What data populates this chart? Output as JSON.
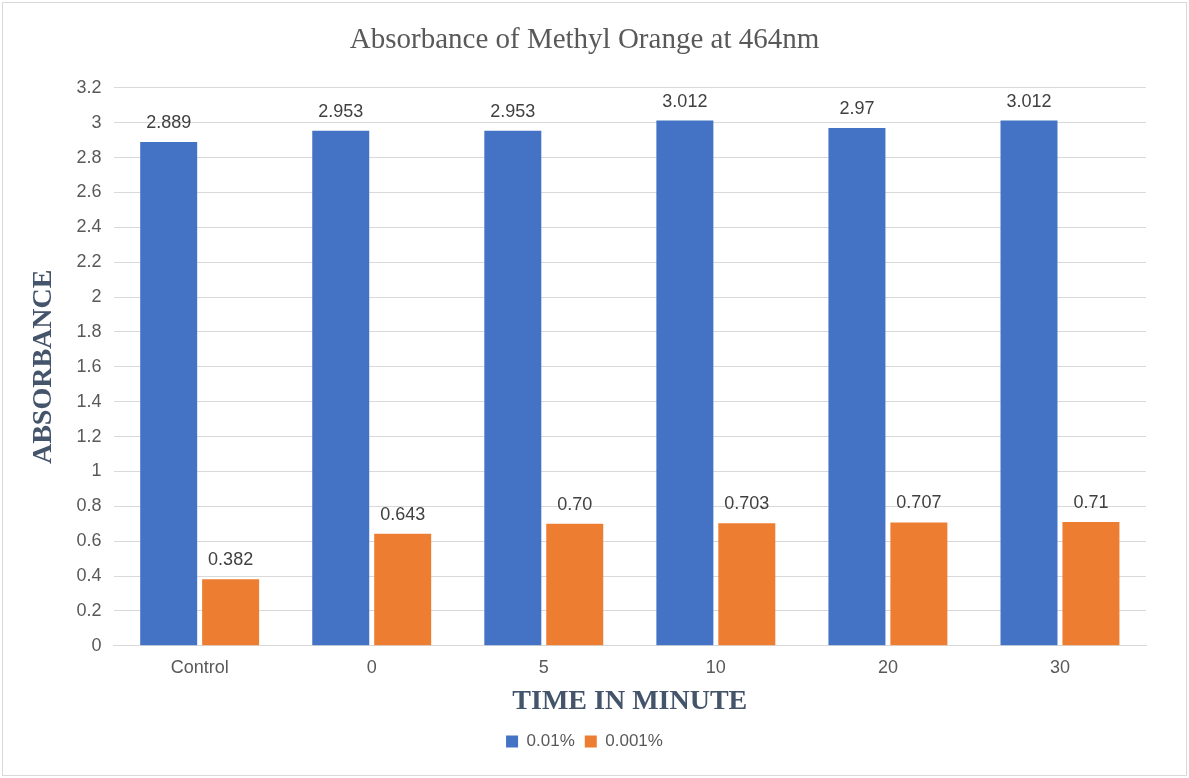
{
  "chart_data": {
    "type": "bar",
    "title": "Absorbance of Methyl Orange at 464nm",
    "xlabel": "TIME IN MINUTE",
    "ylabel": "ABSORBANCE",
    "categories": [
      "Control",
      "0",
      "5",
      "10",
      "20",
      "30"
    ],
    "series": [
      {
        "name": "0.01%",
        "color": "#4472c4",
        "values": [
          2.889,
          2.953,
          2.953,
          3.012,
          2.97,
          3.012
        ],
        "value_labels": [
          "2.889",
          "2.953",
          "2.953",
          "3.012",
          "2.97",
          "3.012"
        ]
      },
      {
        "name": "0.001%",
        "color": "#ed7d31",
        "values": [
          0.382,
          0.643,
          0.7,
          0.703,
          0.707,
          0.71
        ],
        "value_labels": [
          "0.382",
          "0.643",
          "0.70",
          "0.703",
          "0.707",
          "0.71"
        ]
      }
    ],
    "ylim": [
      0,
      3.2
    ],
    "yticks": [
      0,
      0.2,
      0.4,
      0.6,
      0.8,
      1,
      1.2,
      1.4,
      1.6,
      1.8,
      2,
      2.2,
      2.4,
      2.6,
      2.8,
      3,
      3.2
    ],
    "grid": "y",
    "legend": "bottom"
  }
}
